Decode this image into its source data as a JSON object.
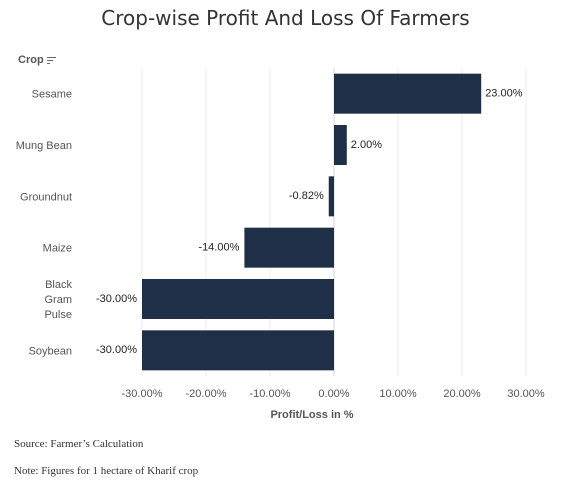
{
  "header": {
    "title": "Crop-wise Profit And Loss Of Farmers",
    "dimension_label": "Crop"
  },
  "chart_data": {
    "type": "bar",
    "orientation": "horizontal",
    "categories": [
      "Sesame",
      "Mung Bean",
      "Groundnut",
      "Maize",
      "Black Gram Pulse",
      "Soybean"
    ],
    "category_display": [
      [
        "Sesame"
      ],
      [
        "Mung Bean"
      ],
      [
        "Groundnut"
      ],
      [
        "Maize"
      ],
      [
        "Black",
        "Gram",
        "Pulse"
      ],
      [
        "Soybean"
      ]
    ],
    "values": [
      23.0,
      2.0,
      -0.82,
      -14.0,
      -30.0,
      -30.0
    ],
    "data_labels": [
      "23.00%",
      "2.00%",
      "-0.82%",
      "-14.00%",
      "-30.00%",
      "-30.00%"
    ],
    "xlabel": "Profit/Loss in %",
    "ylabel": "Crop",
    "xlim": [
      -40,
      30
    ],
    "ticks": [
      -30,
      -20,
      -10,
      0,
      10,
      20,
      30
    ],
    "tick_labels": [
      "-30.00%",
      "-20.00%",
      "-10.00%",
      "0.00%",
      "10.00%",
      "20.00%",
      "30.00%"
    ],
    "grid": true,
    "bar_color": "#1f2f48"
  },
  "notes": {
    "source": "Source: Farmer’s Calculation",
    "note": "Note: Figures for 1 hectare of Kharif crop"
  }
}
